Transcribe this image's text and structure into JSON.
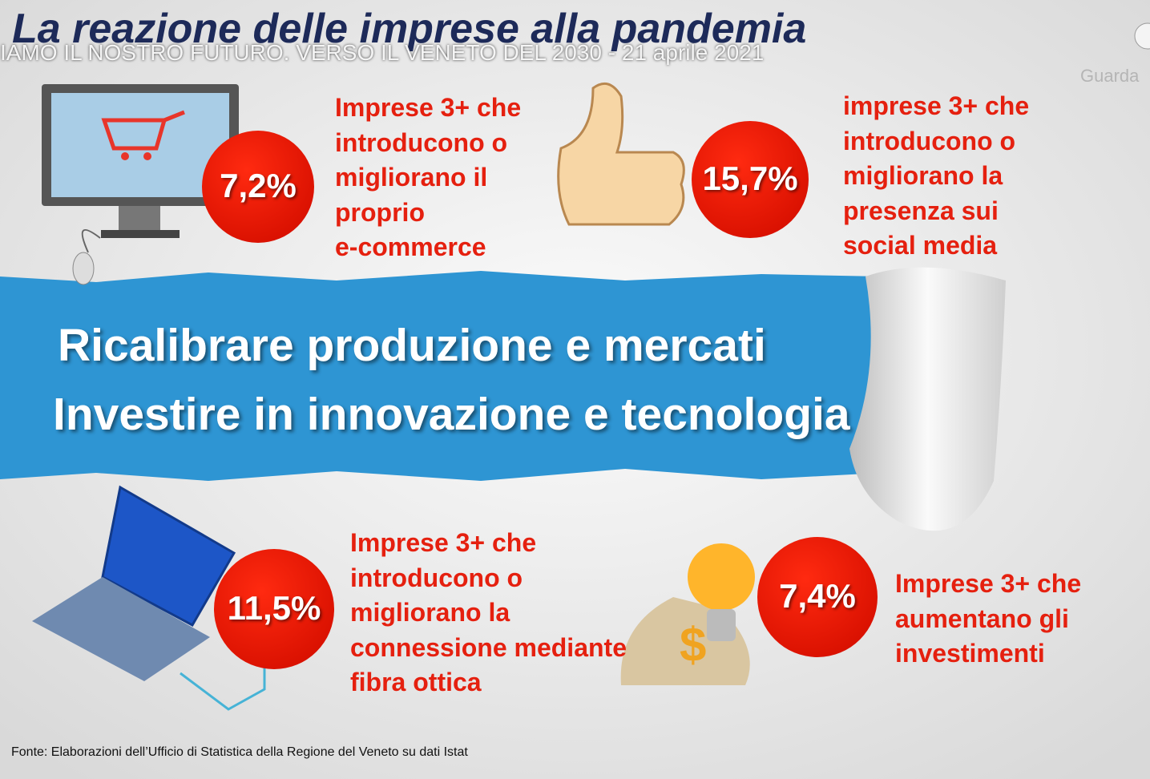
{
  "player": {
    "video_title": "IAMO IL NOSTRO FUTURO. VERSO IL VENETO DEL 2030 - 21 aprile 2021",
    "watch_label": "Guarda"
  },
  "slide": {
    "title": "La reazione delle imprese alla pandemia",
    "stats": [
      {
        "value": "7,2%",
        "lines": [
          "Imprese 3+ che",
          "introducono o",
          "migliorano il",
          "proprio",
          "e-commerce"
        ]
      },
      {
        "value": "15,7%",
        "lines": [
          "imprese 3+ che",
          "introducono o",
          "migliorano la",
          "presenza sui",
          "social media"
        ]
      },
      {
        "value": "11,5%",
        "lines": [
          "Imprese 3+ che",
          "introducono o",
          "migliorano la",
          "connessione mediante",
          "fibra ottica"
        ]
      },
      {
        "value": "7,4%",
        "lines": [
          "Imprese 3+ che",
          "aumentano gli",
          "investimenti"
        ]
      }
    ],
    "banner": [
      "Ricalibrare produzione e mercati",
      "Investire in innovazione e tecnologia"
    ],
    "source": "Fonte: Elaborazioni dell’Ufficio di Statistica della Regione del Veneto su dati Istat"
  }
}
